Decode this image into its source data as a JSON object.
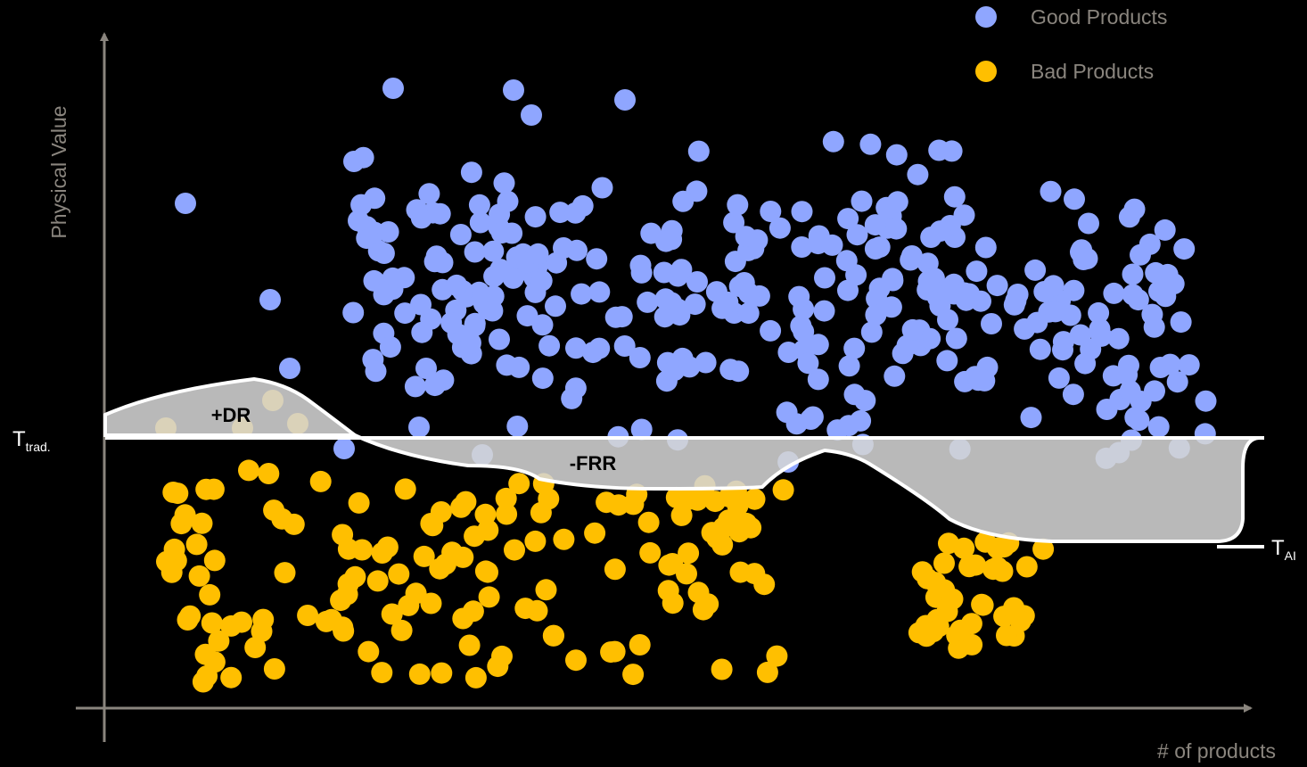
{
  "chart_data": {
    "type": "scatter",
    "xlabel": "# of products",
    "ylabel": "Physical Value",
    "legend": {
      "placement": "top-right"
    },
    "series": [
      {
        "name": "Good Products",
        "color": "#8FA6FF"
      },
      {
        "name": "Bad Products",
        "color": "#FFBF00"
      }
    ],
    "thresholds": {
      "traditional": {
        "main": "T",
        "sub": "trad."
      },
      "ai": {
        "main": "T",
        "sub": "AI"
      }
    },
    "annotations": {
      "dr": "+DR",
      "frr": "-FRR"
    },
    "colors": {
      "axis": "#8A857E",
      "region": "#D4D4D4",
      "threshold": "#FFFFFF",
      "background": "#000000"
    }
  }
}
